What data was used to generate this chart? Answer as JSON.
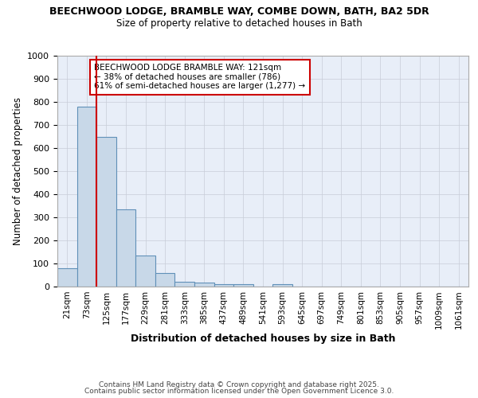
{
  "title_line1": "BEECHWOOD LODGE, BRAMBLE WAY, COMBE DOWN, BATH, BA2 5DR",
  "title_line2": "Size of property relative to detached houses in Bath",
  "xlabel": "Distribution of detached houses by size in Bath",
  "ylabel": "Number of detached properties",
  "bar_labels": [
    "21sqm",
    "73sqm",
    "125sqm",
    "177sqm",
    "229sqm",
    "281sqm",
    "333sqm",
    "385sqm",
    "437sqm",
    "489sqm",
    "541sqm",
    "593sqm",
    "645sqm",
    "697sqm",
    "749sqm",
    "801sqm",
    "853sqm",
    "905sqm",
    "957sqm",
    "1009sqm",
    "1061sqm"
  ],
  "bar_values": [
    80,
    780,
    650,
    335,
    135,
    60,
    22,
    18,
    10,
    10,
    0,
    10,
    0,
    0,
    0,
    0,
    0,
    0,
    0,
    0,
    0
  ],
  "bar_color": "#c8d8e8",
  "bar_edge_color": "#6090b8",
  "red_line_index": 2,
  "red_line_color": "#cc0000",
  "annotation_text": "BEECHWOOD LODGE BRAMBLE WAY: 121sqm\n← 38% of detached houses are smaller (786)\n61% of semi-detached houses are larger (1,277) →",
  "annotation_box_color": "#ffffff",
  "annotation_box_edge": "#cc0000",
  "ylim": [
    0,
    1000
  ],
  "yticks": [
    0,
    100,
    200,
    300,
    400,
    500,
    600,
    700,
    800,
    900,
    1000
  ],
  "grid_color": "#c8ccd8",
  "bg_color": "#e8eef8",
  "footer1": "Contains HM Land Registry data © Crown copyright and database right 2025.",
  "footer2": "Contains public sector information licensed under the Open Government Licence 3.0."
}
